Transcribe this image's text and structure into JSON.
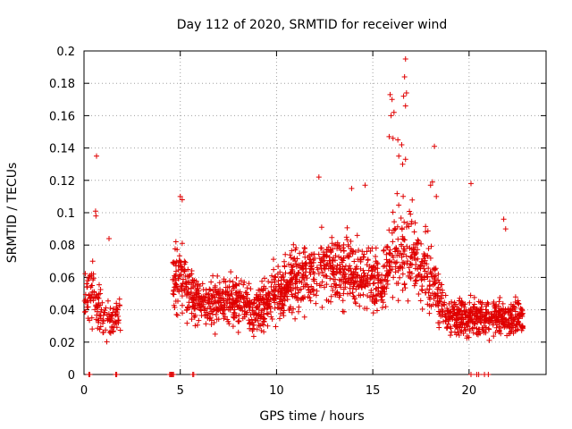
{
  "chart_data": {
    "type": "scatter",
    "title": "Day 112 of 2020, SRMTID for receiver wind",
    "xlabel": "GPS time / hours",
    "ylabel": "SRMTID / TECUs",
    "xlim": [
      0,
      24
    ],
    "ylim": [
      0,
      0.2
    ],
    "xticks": [
      0,
      5,
      10,
      15,
      20
    ],
    "xtick_labels": [
      "0",
      "5",
      "10",
      "15",
      "20"
    ],
    "yticks": [
      0,
      0.02,
      0.04,
      0.06,
      0.08,
      0.1,
      0.12,
      0.14,
      0.16,
      0.18,
      0.2
    ],
    "ytick_labels": [
      "0",
      "0.02",
      "0.04",
      "0.06",
      "0.08",
      "0.1",
      "0.12",
      "0.14",
      "0.16",
      "0.18",
      "0.2"
    ],
    "grid": true,
    "series": [
      {
        "name": "SRMTID",
        "color": "#e00000",
        "marker": "plus",
        "segments": [
          {
            "x_start": 0.0,
            "x_end": 1.9,
            "points": 140
          },
          {
            "x_start": 4.6,
            "x_end": 22.8,
            "points": 1900
          }
        ],
        "anchors": [
          [
            0.0,
            0.045
          ],
          [
            0.5,
            0.05
          ],
          [
            1.0,
            0.035
          ],
          [
            1.5,
            0.035
          ],
          [
            1.9,
            0.036
          ],
          [
            4.6,
            0.06
          ],
          [
            5.0,
            0.06
          ],
          [
            5.5,
            0.05
          ],
          [
            6.0,
            0.045
          ],
          [
            7.0,
            0.045
          ],
          [
            8.0,
            0.045
          ],
          [
            9.0,
            0.04
          ],
          [
            10.0,
            0.05
          ],
          [
            11.0,
            0.06
          ],
          [
            12.0,
            0.065
          ],
          [
            13.0,
            0.063
          ],
          [
            14.0,
            0.062
          ],
          [
            15.0,
            0.06
          ],
          [
            15.5,
            0.055
          ],
          [
            16.0,
            0.075
          ],
          [
            16.5,
            0.08
          ],
          [
            17.0,
            0.075
          ],
          [
            17.5,
            0.065
          ],
          [
            18.0,
            0.06
          ],
          [
            18.5,
            0.045
          ],
          [
            19.0,
            0.036
          ],
          [
            20.0,
            0.035
          ],
          [
            21.0,
            0.035
          ],
          [
            22.0,
            0.035
          ],
          [
            22.8,
            0.035
          ]
        ],
        "outliers": [
          [
            0.65,
            0.135
          ],
          [
            0.6,
            0.101
          ],
          [
            0.62,
            0.098
          ],
          [
            0.45,
            0.07
          ],
          [
            1.3,
            0.084
          ],
          [
            5.0,
            0.11
          ],
          [
            5.1,
            0.108
          ],
          [
            12.2,
            0.122
          ],
          [
            13.9,
            0.115
          ],
          [
            14.6,
            0.117
          ],
          [
            15.9,
            0.173
          ],
          [
            16.0,
            0.17
          ],
          [
            16.1,
            0.162
          ],
          [
            15.95,
            0.16
          ],
          [
            16.05,
            0.146
          ],
          [
            15.85,
            0.147
          ],
          [
            16.3,
            0.145
          ],
          [
            16.5,
            0.142
          ],
          [
            16.7,
            0.195
          ],
          [
            16.65,
            0.184
          ],
          [
            16.75,
            0.174
          ],
          [
            16.6,
            0.172
          ],
          [
            16.7,
            0.166
          ],
          [
            16.55,
            0.13
          ],
          [
            16.7,
            0.133
          ],
          [
            16.35,
            0.135
          ],
          [
            18.2,
            0.141
          ],
          [
            18.1,
            0.119
          ],
          [
            18.0,
            0.117
          ],
          [
            18.3,
            0.11
          ],
          [
            20.1,
            0.118
          ],
          [
            21.8,
            0.096
          ],
          [
            21.9,
            0.09
          ]
        ],
        "zero_values_x": [
          0.25,
          0.3,
          1.65,
          1.7,
          4.45,
          4.5,
          4.55,
          4.6,
          4.65,
          5.65,
          5.7,
          20.1,
          20.4,
          20.5,
          20.8,
          21.0
        ]
      }
    ]
  }
}
